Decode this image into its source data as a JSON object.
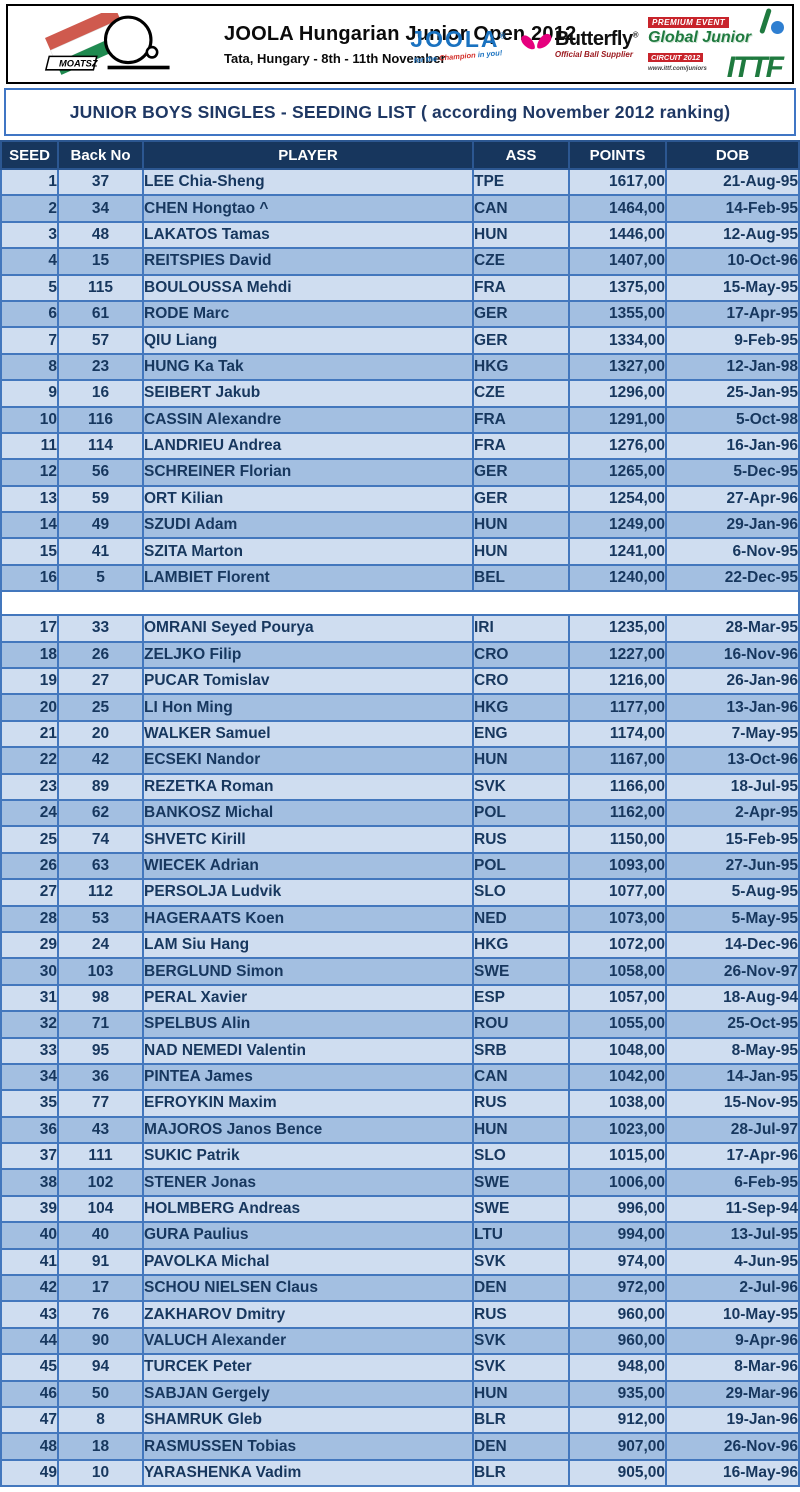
{
  "header": {
    "moatsz": {
      "label": "MOATSZ"
    },
    "event": {
      "title": "JOOLA Hungarian Junior Open 2012",
      "subtitle": "Tata, Hungary - 8th - 11th November"
    },
    "joola_logo": {
      "text": "JOOLA",
      "reg": "®",
      "tagline_pre": "for the",
      "tagline_mid": "Champion",
      "tagline_post": "in you!"
    },
    "butterfly_logo": {
      "text": "Butterfly",
      "reg": "®",
      "subtitle": "Official Ball Supplier"
    },
    "ittf_logo": {
      "premium": "PREMIUM EVENT",
      "title": "Global Junior",
      "circuit": "CIRCUIT 2012",
      "url": "www.ittf.com/juniors",
      "acronym": "ITTF"
    }
  },
  "title_bar": {
    "text": "JUNIOR BOYS SINGLES - SEEDING LIST ( according November 2012 ranking)"
  },
  "colors": {
    "header_bg": "#17365d",
    "row_light": "#cfddf0",
    "row_dark": "#a3bfe1",
    "grid_border": "#4377bd",
    "text_navy": "#17375e",
    "title_border": "#4076c4",
    "joola_blue": "#1a72c0",
    "butterfly_pink": "#e6007e",
    "ittf_green": "#1f7a3f",
    "ittf_red": "#c8242b"
  },
  "table": {
    "columns": [
      "SEED",
      "Back No",
      "PLAYER",
      "ASS",
      "POINTS",
      "DOB"
    ],
    "gap_after_index": 16,
    "rows": [
      [
        1,
        "37",
        "LEE Chia-Sheng",
        "TPE",
        "1617,00",
        "21-Aug-95"
      ],
      [
        2,
        "34",
        "CHEN Hongtao ^",
        "CAN",
        "1464,00",
        "14-Feb-95"
      ],
      [
        3,
        "48",
        "LAKATOS Tamas",
        "HUN",
        "1446,00",
        "12-Aug-95"
      ],
      [
        4,
        "15",
        "REITSPIES David",
        "CZE",
        "1407,00",
        "10-Oct-96"
      ],
      [
        5,
        "115",
        "BOULOUSSA Mehdi",
        "FRA",
        "1375,00",
        "15-May-95"
      ],
      [
        6,
        "61",
        "RODE Marc",
        "GER",
        "1355,00",
        "17-Apr-95"
      ],
      [
        7,
        "57",
        "QIU Liang",
        "GER",
        "1334,00",
        "9-Feb-95"
      ],
      [
        8,
        "23",
        "HUNG Ka Tak",
        "HKG",
        "1327,00",
        "12-Jan-98"
      ],
      [
        9,
        "16",
        "SEIBERT Jakub",
        "CZE",
        "1296,00",
        "25-Jan-95"
      ],
      [
        10,
        "116",
        "CASSIN Alexandre",
        "FRA",
        "1291,00",
        "5-Oct-98"
      ],
      [
        11,
        "114",
        "LANDRIEU Andrea",
        "FRA",
        "1276,00",
        "16-Jan-96"
      ],
      [
        12,
        "56",
        "SCHREINER Florian",
        "GER",
        "1265,00",
        "5-Dec-95"
      ],
      [
        13,
        "59",
        "ORT Kilian",
        "GER",
        "1254,00",
        "27-Apr-96"
      ],
      [
        14,
        "49",
        "SZUDI Adam",
        "HUN",
        "1249,00",
        "29-Jan-96"
      ],
      [
        15,
        "41",
        "SZITA Marton",
        "HUN",
        "1241,00",
        "6-Nov-95"
      ],
      [
        16,
        "5",
        "LAMBIET Florent",
        "BEL",
        "1240,00",
        "22-Dec-95"
      ],
      [
        17,
        "33",
        "OMRANI Seyed Pourya",
        "IRI",
        "1235,00",
        "28-Mar-95"
      ],
      [
        18,
        "26",
        "ZELJKO Filip",
        "CRO",
        "1227,00",
        "16-Nov-96"
      ],
      [
        19,
        "27",
        "PUCAR Tomislav",
        "CRO",
        "1216,00",
        "26-Jan-96"
      ],
      [
        20,
        "25",
        "LI Hon Ming",
        "HKG",
        "1177,00",
        "13-Jan-96"
      ],
      [
        21,
        "20",
        "WALKER Samuel",
        "ENG",
        "1174,00",
        "7-May-95"
      ],
      [
        22,
        "42",
        "ECSEKI Nandor",
        "HUN",
        "1167,00",
        "13-Oct-96"
      ],
      [
        23,
        "89",
        "REZETKA Roman",
        "SVK",
        "1166,00",
        "18-Jul-95"
      ],
      [
        24,
        "62",
        "BANKOSZ Michal",
        "POL",
        "1162,00",
        "2-Apr-95"
      ],
      [
        25,
        "74",
        "SHVETC Kirill",
        "RUS",
        "1150,00",
        "15-Feb-95"
      ],
      [
        26,
        "63",
        "WIECEK Adrian",
        "POL",
        "1093,00",
        "27-Jun-95"
      ],
      [
        27,
        "112",
        "PERSOLJA Ludvik",
        "SLO",
        "1077,00",
        "5-Aug-95"
      ],
      [
        28,
        "53",
        "HAGERAATS Koen",
        "NED",
        "1073,00",
        "5-May-95"
      ],
      [
        29,
        "24",
        "LAM Siu Hang",
        "HKG",
        "1072,00",
        "14-Dec-96"
      ],
      [
        30,
        "103",
        "BERGLUND Simon",
        "SWE",
        "1058,00",
        "26-Nov-97"
      ],
      [
        31,
        "98",
        "PERAL Xavier",
        "ESP",
        "1057,00",
        "18-Aug-94"
      ],
      [
        32,
        "71",
        "SPELBUS Alin",
        "ROU",
        "1055,00",
        "25-Oct-95"
      ],
      [
        33,
        "95",
        "NAD NEMEDI Valentin",
        "SRB",
        "1048,00",
        "8-May-95"
      ],
      [
        34,
        "36",
        "PINTEA James",
        "CAN",
        "1042,00",
        "14-Jan-95"
      ],
      [
        35,
        "77",
        "EFROYKIN Maxim",
        "RUS",
        "1038,00",
        "15-Nov-95"
      ],
      [
        36,
        "43",
        "MAJOROS Janos Bence",
        "HUN",
        "1023,00",
        "28-Jul-97"
      ],
      [
        37,
        "111",
        "SUKIC Patrik",
        "SLO",
        "1015,00",
        "17-Apr-96"
      ],
      [
        38,
        "102",
        "STENER Jonas",
        "SWE",
        "1006,00",
        "6-Feb-95"
      ],
      [
        39,
        "104",
        "HOLMBERG Andreas",
        "SWE",
        "996,00",
        "11-Sep-94"
      ],
      [
        40,
        "40",
        "GURA Paulius",
        "LTU",
        "994,00",
        "13-Jul-95"
      ],
      [
        41,
        "91",
        "PAVOLKA Michal",
        "SVK",
        "974,00",
        "4-Jun-95"
      ],
      [
        42,
        "17",
        "SCHOU NIELSEN Claus",
        "DEN",
        "972,00",
        "2-Jul-96"
      ],
      [
        43,
        "76",
        "ZAKHAROV Dmitry",
        "RUS",
        "960,00",
        "10-May-95"
      ],
      [
        44,
        "90",
        "VALUCH Alexander",
        "SVK",
        "960,00",
        "9-Apr-96"
      ],
      [
        45,
        "94",
        "TURCEK Peter",
        "SVK",
        "948,00",
        "8-Mar-96"
      ],
      [
        46,
        "50",
        "SABJAN Gergely",
        "HUN",
        "935,00",
        "29-Mar-96"
      ],
      [
        47,
        "8",
        "SHAMRUK Gleb",
        "BLR",
        "912,00",
        "19-Jan-96"
      ],
      [
        48,
        "18",
        "RASMUSSEN Tobias",
        "DEN",
        "907,00",
        "26-Nov-96"
      ],
      [
        49,
        "10",
        "YARASHENKA Vadim",
        "BLR",
        "905,00",
        "16-May-96"
      ]
    ]
  }
}
